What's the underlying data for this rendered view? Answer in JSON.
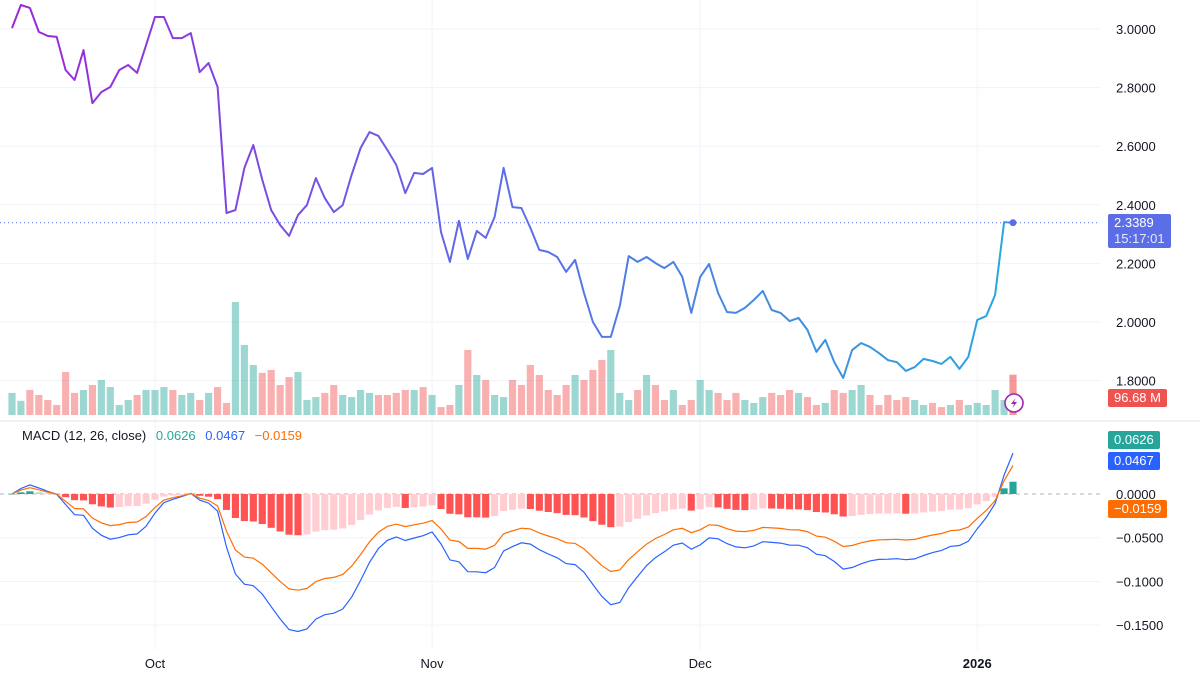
{
  "chart_data": [
    {
      "type": "line",
      "series_name": "",
      "close": [
        3.003,
        3.082,
        3.072,
        2.99,
        2.976,
        2.973,
        2.86,
        2.826,
        2.928,
        2.747,
        2.785,
        2.802,
        2.86,
        2.877,
        2.85,
        2.945,
        3.041,
        3.041,
        2.969,
        2.969,
        2.986,
        2.853,
        2.884,
        2.802,
        2.372,
        2.382,
        2.526,
        2.604,
        2.485,
        2.382,
        2.331,
        2.294,
        2.365,
        2.399,
        2.491,
        2.423,
        2.375,
        2.399,
        2.502,
        2.594,
        2.648,
        2.635,
        2.587,
        2.536,
        2.44,
        2.509,
        2.505,
        2.526,
        2.307,
        2.205,
        2.345,
        2.215,
        2.311,
        2.287,
        2.358,
        2.526,
        2.392,
        2.389,
        2.321,
        2.246,
        2.239,
        2.222,
        2.171,
        2.212,
        2.099,
        2.0,
        1.949,
        1.949,
        2.055,
        2.225,
        2.205,
        2.222,
        2.201,
        2.184,
        2.205,
        2.154,
        2.031,
        2.154,
        2.198,
        2.099,
        2.034,
        2.031,
        2.048,
        2.075,
        2.106,
        2.041,
        2.031,
        2.003,
        2.014,
        1.973,
        1.898,
        1.939,
        1.863,
        1.809,
        1.904,
        1.928,
        1.915,
        1.894,
        1.87,
        1.863,
        1.833,
        1.846,
        1.874,
        1.867,
        1.857,
        1.881,
        1.84,
        1.881,
        2.007,
        2.02,
        2.092,
        2.341,
        2.3389
      ],
      "volume_m": [
        53,
        34,
        60,
        48,
        36,
        24,
        103,
        53,
        60,
        72,
        84,
        67,
        24,
        36,
        48,
        60,
        60,
        67,
        60,
        48,
        53,
        36,
        53,
        67,
        29,
        271,
        168,
        120,
        101,
        108,
        72,
        91,
        103,
        36,
        43,
        53,
        72,
        48,
        43,
        60,
        53,
        48,
        48,
        53,
        60,
        60,
        67,
        48,
        19,
        24,
        72,
        156,
        96,
        84,
        48,
        43,
        84,
        72,
        120,
        96,
        60,
        48,
        72,
        96,
        84,
        108,
        132,
        156,
        53,
        36,
        60,
        96,
        72,
        36,
        60,
        24,
        36,
        84,
        60,
        53,
        36,
        53,
        36,
        29,
        43,
        53,
        48,
        60,
        53,
        43,
        24,
        29,
        60,
        53,
        60,
        72,
        48,
        24,
        48,
        36,
        43,
        36,
        24,
        29,
        19,
        24,
        36,
        24,
        29,
        24,
        60,
        36,
        96.68
      ],
      "y_ticks": [
        "3.0000",
        "2.8000",
        "2.6000",
        "2.4000",
        "2.2000",
        "2.0000",
        "1.8000"
      ],
      "ylim": [
        1.72,
        3.1
      ],
      "last_price": "2.3389",
      "countdown": "15:17:01",
      "last_volume": "96.68 M",
      "colors": {
        "line_start": "#9c27d8",
        "line_mid": "#5b6ee8",
        "line_end": "#2aa7de",
        "vol_up": "#26a69a",
        "vol_down": "#ef5350",
        "price_tag": "#5b6ee8",
        "volume_tag": "#ef5350"
      }
    },
    {
      "type": "bar",
      "title": "MACD (12, 26, close)",
      "histogram_value": "0.0626",
      "macd_value": "0.0467",
      "signal_value": "−0.0159",
      "y_ticks": [
        "0.0000",
        "−0.0500",
        "−0.1000",
        "−0.1500"
      ],
      "ylim": [
        -0.175,
        0.085
      ],
      "colors": {
        "hist_up_strong": "#26a69a",
        "hist_up_weak": "#b2dfdb",
        "hist_down_strong": "#ff5252",
        "hist_down_weak": "#ffcdd2",
        "macd": "#2962ff",
        "signal": "#ff6d00"
      }
    }
  ],
  "x_ticks": [
    {
      "label": "Oct",
      "index": 16
    },
    {
      "label": "Nov",
      "index": 47
    },
    {
      "label": "Dec",
      "index": 77
    },
    {
      "label": "2026",
      "index": 108,
      "bold": true
    }
  ],
  "icons": {
    "alert": "lightning-bolt-icon"
  }
}
